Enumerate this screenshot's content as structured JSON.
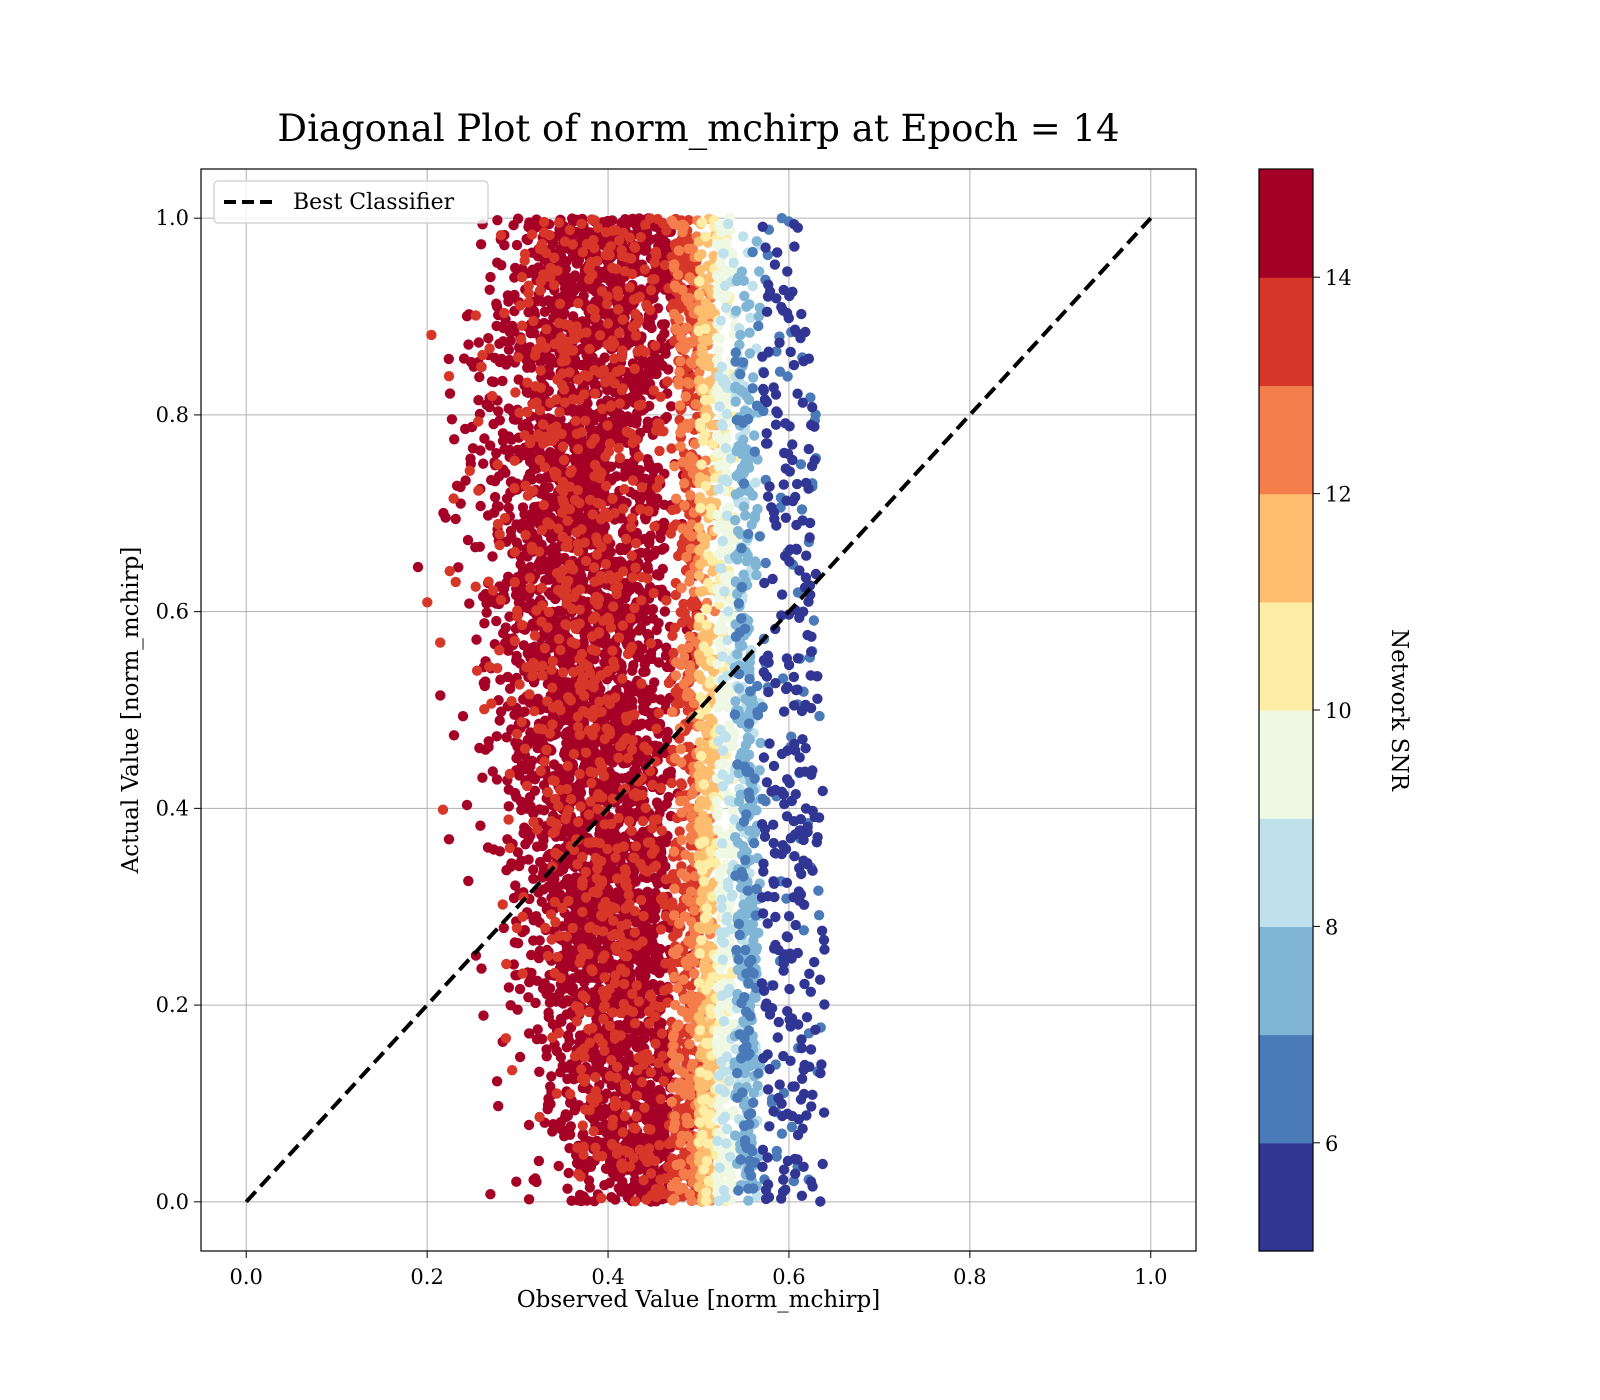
{
  "chart_data": {
    "type": "scatter",
    "title": "Diagonal Plot of norm_mchirp at Epoch = 14",
    "xlabel": "Observed Value [norm_mchirp]",
    "ylabel": "Actual Value [norm_mchirp]",
    "xlim": [
      -0.05,
      1.05
    ],
    "ylim": [
      -0.05,
      1.05
    ],
    "xticks": [
      "0.0",
      "0.2",
      "0.4",
      "0.6",
      "0.8",
      "1.0"
    ],
    "yticks": [
      "0.0",
      "0.2",
      "0.4",
      "0.6",
      "0.8",
      "1.0"
    ],
    "grid": true,
    "legend": {
      "placement": "top-left",
      "entries": [
        "Best Classifier"
      ]
    },
    "reference_line": {
      "name": "Best Classifier",
      "style": "dashed",
      "color": "#000000",
      "x": [
        0.0,
        1.0
      ],
      "y": [
        0.0,
        1.0
      ]
    },
    "colorbar": {
      "label": "Network SNR",
      "range": [
        5,
        15
      ],
      "ticks": [
        "6",
        "8",
        "10",
        "12",
        "14"
      ],
      "levels": [
        {
          "from": 5,
          "to": 6,
          "color": "#313695"
        },
        {
          "from": 6,
          "to": 7,
          "color": "#4a7ab7"
        },
        {
          "from": 7,
          "to": 8,
          "color": "#81b5d6"
        },
        {
          "from": 8,
          "to": 9,
          "color": "#bfe1ec"
        },
        {
          "from": 9,
          "to": 10,
          "color": "#eff8e2"
        },
        {
          "from": 10,
          "to": 11,
          "color": "#feeda4"
        },
        {
          "from": 11,
          "to": 12,
          "color": "#fcbd6f"
        },
        {
          "from": 12,
          "to": 13,
          "color": "#f47d4c"
        },
        {
          "from": 13,
          "to": 14,
          "color": "#d73729"
        },
        {
          "from": 14,
          "to": 15,
          "color": "#a50026"
        }
      ]
    },
    "series": [
      {
        "snr_by_observed_bin": [
          {
            "x_from": 0.15,
            "x_to": 0.47,
            "snr": 14.5
          },
          {
            "x_from": 0.47,
            "x_to": 0.5,
            "snr": 13.3
          },
          {
            "x_from": 0.5,
            "x_to": 0.52,
            "snr": 11.5
          },
          {
            "x_from": 0.52,
            "x_to": 0.54,
            "snr": 9.5
          },
          {
            "x_from": 0.54,
            "x_to": 0.57,
            "snr": 7.5
          },
          {
            "x_from": 0.57,
            "x_to": 0.66,
            "snr": 5.5
          }
        ],
        "band_center": [
          {
            "y": 0.0,
            "x": 0.46
          },
          {
            "y": 0.2,
            "x": 0.42
          },
          {
            "y": 0.4,
            "x": 0.39
          },
          {
            "y": 0.6,
            "x": 0.37
          },
          {
            "y": 0.8,
            "x": 0.37
          },
          {
            "y": 1.0,
            "x": 0.39
          }
        ],
        "band_right_edge": [
          {
            "y": 0.0,
            "x": 0.53
          },
          {
            "y": 0.2,
            "x": 0.53
          },
          {
            "y": 0.4,
            "x": 0.53
          },
          {
            "y": 0.6,
            "x": 0.52
          },
          {
            "y": 0.8,
            "x": 0.52
          },
          {
            "y": 1.0,
            "x": 0.5
          }
        ],
        "outer_range_x": [
          0.16,
          0.66
        ],
        "range_y": [
          0.0,
          1.0
        ]
      }
    ]
  }
}
